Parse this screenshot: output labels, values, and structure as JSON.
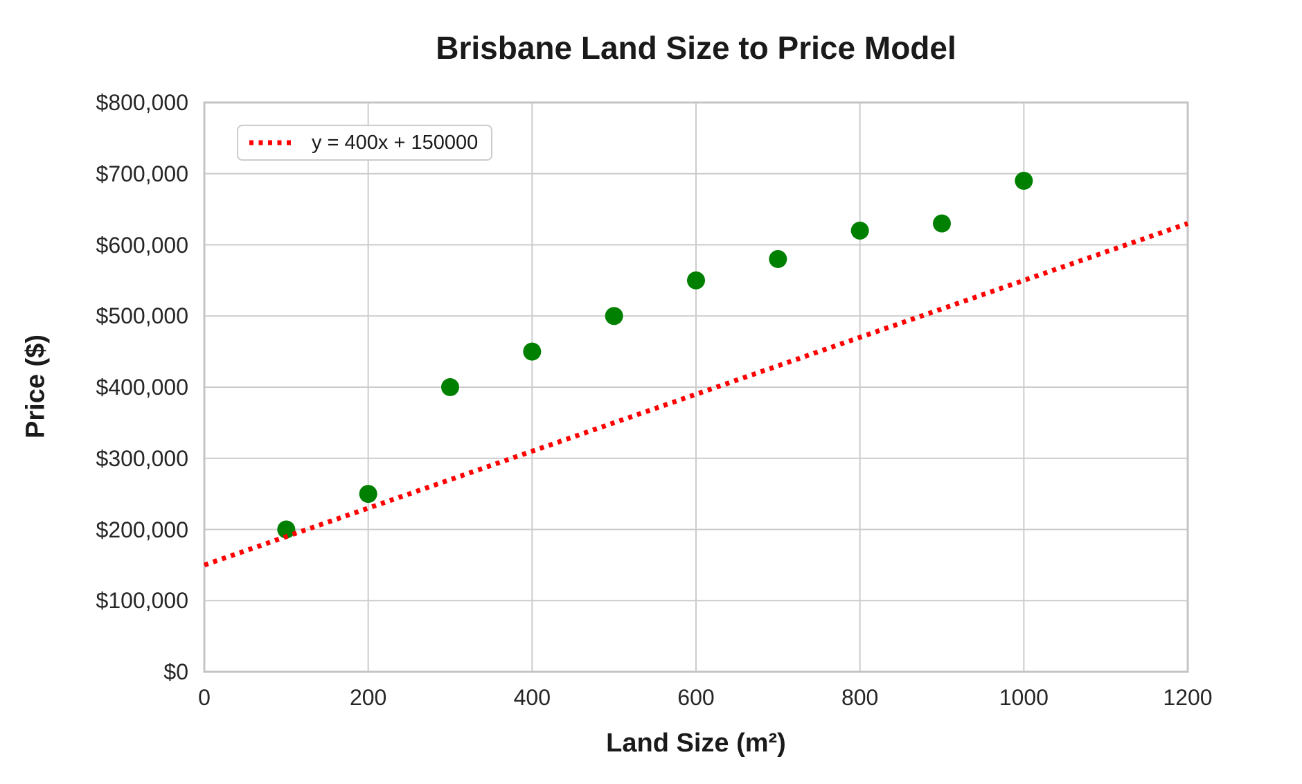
{
  "figure": {
    "title": "Brisbane Land Size to Price Model",
    "x_axis_label": "Land Size (m²)",
    "y_axis_label": "Price ($)",
    "background_color": "#ffffff",
    "grid_color": "#cccccc",
    "spine_color": "#c4c4c4",
    "text_color": "#1a1a1a"
  },
  "legend": {
    "position": "upper-left",
    "entries": [
      {
        "label": "y = 400x + 150000",
        "marker": "dotted-line",
        "color": "#ff0000"
      }
    ]
  },
  "chart_data": {
    "type": "scatter",
    "title": "Brisbane Land Size to Price Model",
    "xlabel": "Land Size (m²)",
    "ylabel": "Price ($)",
    "xlim": [
      0,
      1200
    ],
    "ylim": [
      0,
      800000
    ],
    "grid": true,
    "legend_position": "upper-left",
    "series": [
      {
        "name": "land-price-points",
        "kind": "scatter",
        "marker": "circle",
        "color": "#008000",
        "points": [
          {
            "x": 100,
            "y": 200000
          },
          {
            "x": 200,
            "y": 250000
          },
          {
            "x": 300,
            "y": 400000
          },
          {
            "x": 400,
            "y": 450000
          },
          {
            "x": 500,
            "y": 500000
          },
          {
            "x": 600,
            "y": 550000
          },
          {
            "x": 700,
            "y": 580000
          },
          {
            "x": 800,
            "y": 620000
          },
          {
            "x": 900,
            "y": 630000
          },
          {
            "x": 1000,
            "y": 690000
          }
        ]
      },
      {
        "name": "model-trendline",
        "kind": "line",
        "style": "dotted",
        "color": "#ff0000",
        "label": "y = 400x + 150000",
        "slope": 400,
        "intercept": 150000,
        "x_range": [
          0,
          1200
        ]
      }
    ],
    "x_ticks": [
      {
        "value": 0,
        "label": "0"
      },
      {
        "value": 200,
        "label": "200"
      },
      {
        "value": 400,
        "label": "400"
      },
      {
        "value": 600,
        "label": "600"
      },
      {
        "value": 800,
        "label": "800"
      },
      {
        "value": 1000,
        "label": "1000"
      },
      {
        "value": 1200,
        "label": "1200"
      }
    ],
    "y_ticks": [
      {
        "value": 0,
        "label": "$0"
      },
      {
        "value": 100000,
        "label": "$100,000"
      },
      {
        "value": 200000,
        "label": "$200,000"
      },
      {
        "value": 300000,
        "label": "$300,000"
      },
      {
        "value": 400000,
        "label": "$400,000"
      },
      {
        "value": 500000,
        "label": "$500,000"
      },
      {
        "value": 600000,
        "label": "$600,000"
      },
      {
        "value": 700000,
        "label": "$700,000"
      },
      {
        "value": 800000,
        "label": "$800,000"
      }
    ]
  }
}
